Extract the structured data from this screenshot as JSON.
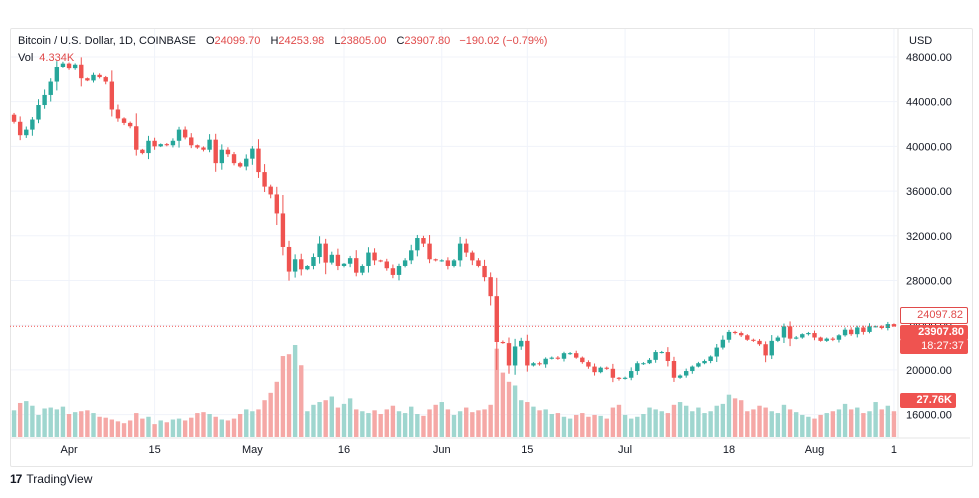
{
  "header": {
    "symbol": "Bitcoin / U.S. Dollar, 1D, COINBASE",
    "open_label": "O",
    "open": "24099.70",
    "high_label": "H",
    "high": "24253.98",
    "low_label": "L",
    "low": "23805.00",
    "close_label": "C",
    "close": "23907.80",
    "change": "−190.02 (−0.79%)",
    "vol_label": "Vol",
    "vol": "4.334K"
  },
  "axis": {
    "currency": "USD"
  },
  "tags": {
    "high": "24097.82",
    "last": "23907.80",
    "timer": "18:27:37",
    "volume": "27.76K"
  },
  "brand": {
    "logo": "17",
    "name": "TradingView"
  },
  "colors": {
    "up": "#26a69a",
    "down": "#ef5350",
    "up_vol": "#9fd6cf",
    "down_vol": "#f5a8a6",
    "grid": "#f0f3fa"
  },
  "chart_data": {
    "type": "candlestick",
    "ylim": [
      14000,
      50500
    ],
    "y_ticks": [
      48000,
      44000,
      40000,
      36000,
      32000,
      28000,
      24000,
      20000,
      16000
    ],
    "y_tick_labels": [
      "48000.00",
      "44000.00",
      "40000.00",
      "36000.00",
      "32000.00",
      "28000.00",
      "24000.00",
      "20000.00",
      "16000.00"
    ],
    "x_tick_labels": [
      {
        "index": 9,
        "label": "Apr"
      },
      {
        "index": 23,
        "label": "15"
      },
      {
        "index": 39,
        "label": "May"
      },
      {
        "index": 54,
        "label": "16"
      },
      {
        "index": 70,
        "label": "Jun"
      },
      {
        "index": 84,
        "label": "15"
      },
      {
        "index": 100,
        "label": "Jul"
      },
      {
        "index": 117,
        "label": "18"
      },
      {
        "index": 131,
        "label": "Aug"
      },
      {
        "index": 144,
        "label": "1"
      }
    ],
    "last_price": 23907.8,
    "closes": [
      42200,
      41000,
      41500,
      42400,
      43700,
      44600,
      45800,
      47100,
      47400,
      47000,
      47300,
      46100,
      45900,
      46400,
      46200,
      45800,
      43300,
      42500,
      42100,
      41800,
      39700,
      39400,
      40500,
      40000,
      40200,
      40100,
      40500,
      41500,
      40800,
      40100,
      39900,
      39700,
      40600,
      38500,
      39700,
      39300,
      38500,
      38200,
      38900,
      39800,
      37700,
      36400,
      35700,
      34000,
      31000,
      28800,
      29900,
      29000,
      29300,
      30100,
      31300,
      29600,
      30300,
      29300,
      29500,
      30000,
      28700,
      29300,
      30500,
      29800,
      29700,
      29100,
      28500,
      29300,
      29800,
      30700,
      31800,
      31300,
      29900,
      29800,
      29800,
      29300,
      29800,
      31300,
      30500,
      29800,
      29300,
      28300,
      26600,
      22500,
      22400,
      20400,
      22100,
      22600,
      20400,
      20600,
      20500,
      21000,
      21100,
      21000,
      21500,
      21500,
      21100,
      20700,
      20300,
      19800,
      20200,
      20100,
      19300,
      19200,
      19300,
      19900,
      20600,
      20600,
      20900,
      21600,
      21600,
      20800,
      19300,
      19500,
      19900,
      20300,
      20600,
      20800,
      21200,
      22000,
      22700,
      23400,
      23300,
      23100,
      22700,
      22600,
      22300,
      21300,
      22600,
      22900,
      23900,
      22800,
      22900,
      23200,
      23300,
      22900,
      22600,
      22800,
      22700,
      23100,
      23600,
      23200,
      23800,
      23400,
      23900,
      23900,
      23750,
      24100,
      23907.8
    ],
    "volumes": [
      29,
      37,
      39,
      34,
      24,
      31,
      32,
      30,
      33,
      25,
      27,
      28,
      29,
      26,
      22,
      21,
      19,
      17,
      15,
      18,
      26,
      20,
      22,
      14,
      18,
      16,
      19,
      20,
      18,
      21,
      26,
      27,
      25,
      22,
      19,
      18,
      20,
      25,
      30,
      28,
      30,
      40,
      48,
      60,
      88,
      90,
      100,
      78,
      28,
      35,
      38,
      40,
      44,
      32,
      36,
      42,
      30,
      28,
      26,
      29,
      25,
      30,
      34,
      28,
      26,
      33,
      25,
      23,
      30,
      35,
      38,
      30,
      24,
      28,
      32,
      27,
      29,
      30,
      35,
      96,
      70,
      60,
      56,
      40,
      38,
      33,
      29,
      30,
      25,
      26,
      22,
      20,
      24,
      26,
      22,
      24,
      23,
      20,
      32,
      35,
      24,
      20,
      22,
      25,
      32,
      30,
      28,
      26,
      35,
      38,
      34,
      28,
      32,
      26,
      28,
      34,
      36,
      46,
      42,
      40,
      28,
      30,
      34,
      32,
      28,
      26,
      35,
      30,
      27,
      24,
      22,
      20,
      24,
      26,
      28,
      30,
      36,
      30,
      32,
      26,
      28,
      38,
      30,
      34,
      28
    ]
  }
}
